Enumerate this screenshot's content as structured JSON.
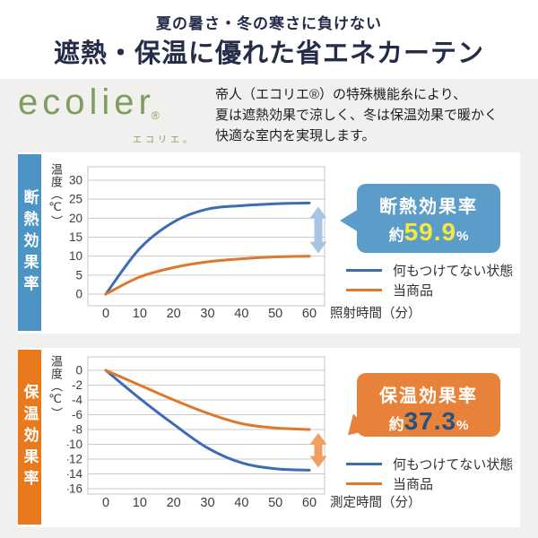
{
  "header": {
    "subtitle": "夏の暑さ・冬の寒さに負けない",
    "title": "遮熱・保温に優れた省エネカーテン"
  },
  "brand": {
    "logo": "ecolier",
    "registered_mark": "®",
    "logo_subtext": "エコリエ。"
  },
  "intro": {
    "line1": "帝人（エコリエ®）の特殊機能糸により、",
    "line2": "夏は遮熱効果で涼しく、冬は保温効果で暖かく",
    "line3": "快適な室内を実現します。"
  },
  "chart_data": [
    {
      "type": "line",
      "section_label": "断熱効果率",
      "ylabel": "温度（℃）",
      "xlabel": "照射時間（分）",
      "x": [
        0,
        10,
        20,
        30,
        40,
        50,
        60
      ],
      "ylim": [
        0,
        30
      ],
      "yticks": [
        30,
        25,
        20,
        15,
        10,
        5,
        0
      ],
      "grid": true,
      "series": [
        {
          "name": "何もつけてない状態",
          "color": "#3c6cb4",
          "values": [
            0,
            12,
            19,
            22.4,
            23.3,
            23.8,
            24
          ]
        },
        {
          "name": "当商品",
          "color": "#e0782c",
          "values": [
            0,
            4.5,
            7,
            8.5,
            9.3,
            9.8,
            10
          ]
        }
      ],
      "accent_color": "#4b94c3",
      "arrow_color": "#a6c5e2",
      "callout": {
        "bg": "#5b9cc9",
        "title": "断熱効果率",
        "prefix": "約",
        "value": "59.9",
        "unit": "%",
        "value_color": "#f6e83e"
      },
      "legend_position": "right"
    },
    {
      "type": "line",
      "section_label": "保温効果率",
      "ylabel": "温度（℃）",
      "xlabel": "測定時間（分）",
      "x": [
        0,
        10,
        20,
        30,
        40,
        50,
        60
      ],
      "ylim": [
        -16,
        0
      ],
      "yticks": [
        0,
        -2,
        -4,
        -6,
        -8,
        -10,
        -12,
        -14,
        -16
      ],
      "grid": true,
      "series": [
        {
          "name": "何もつけてない状態",
          "color": "#3c6cb4",
          "values": [
            0,
            -3.8,
            -7.3,
            -10.5,
            -12.5,
            -13.3,
            -13.5
          ]
        },
        {
          "name": "当商品",
          "color": "#e0782c",
          "values": [
            0,
            -2,
            -4,
            -5.8,
            -7.2,
            -7.8,
            -8
          ]
        }
      ],
      "accent_color": "#e8791d",
      "arrow_color": "#f19e62",
      "callout": {
        "bg": "#e8823a",
        "title": "保温効果率",
        "prefix": "約",
        "value": "37.3",
        "unit": "%",
        "value_color": "#27517e"
      },
      "legend_position": "right"
    }
  ]
}
